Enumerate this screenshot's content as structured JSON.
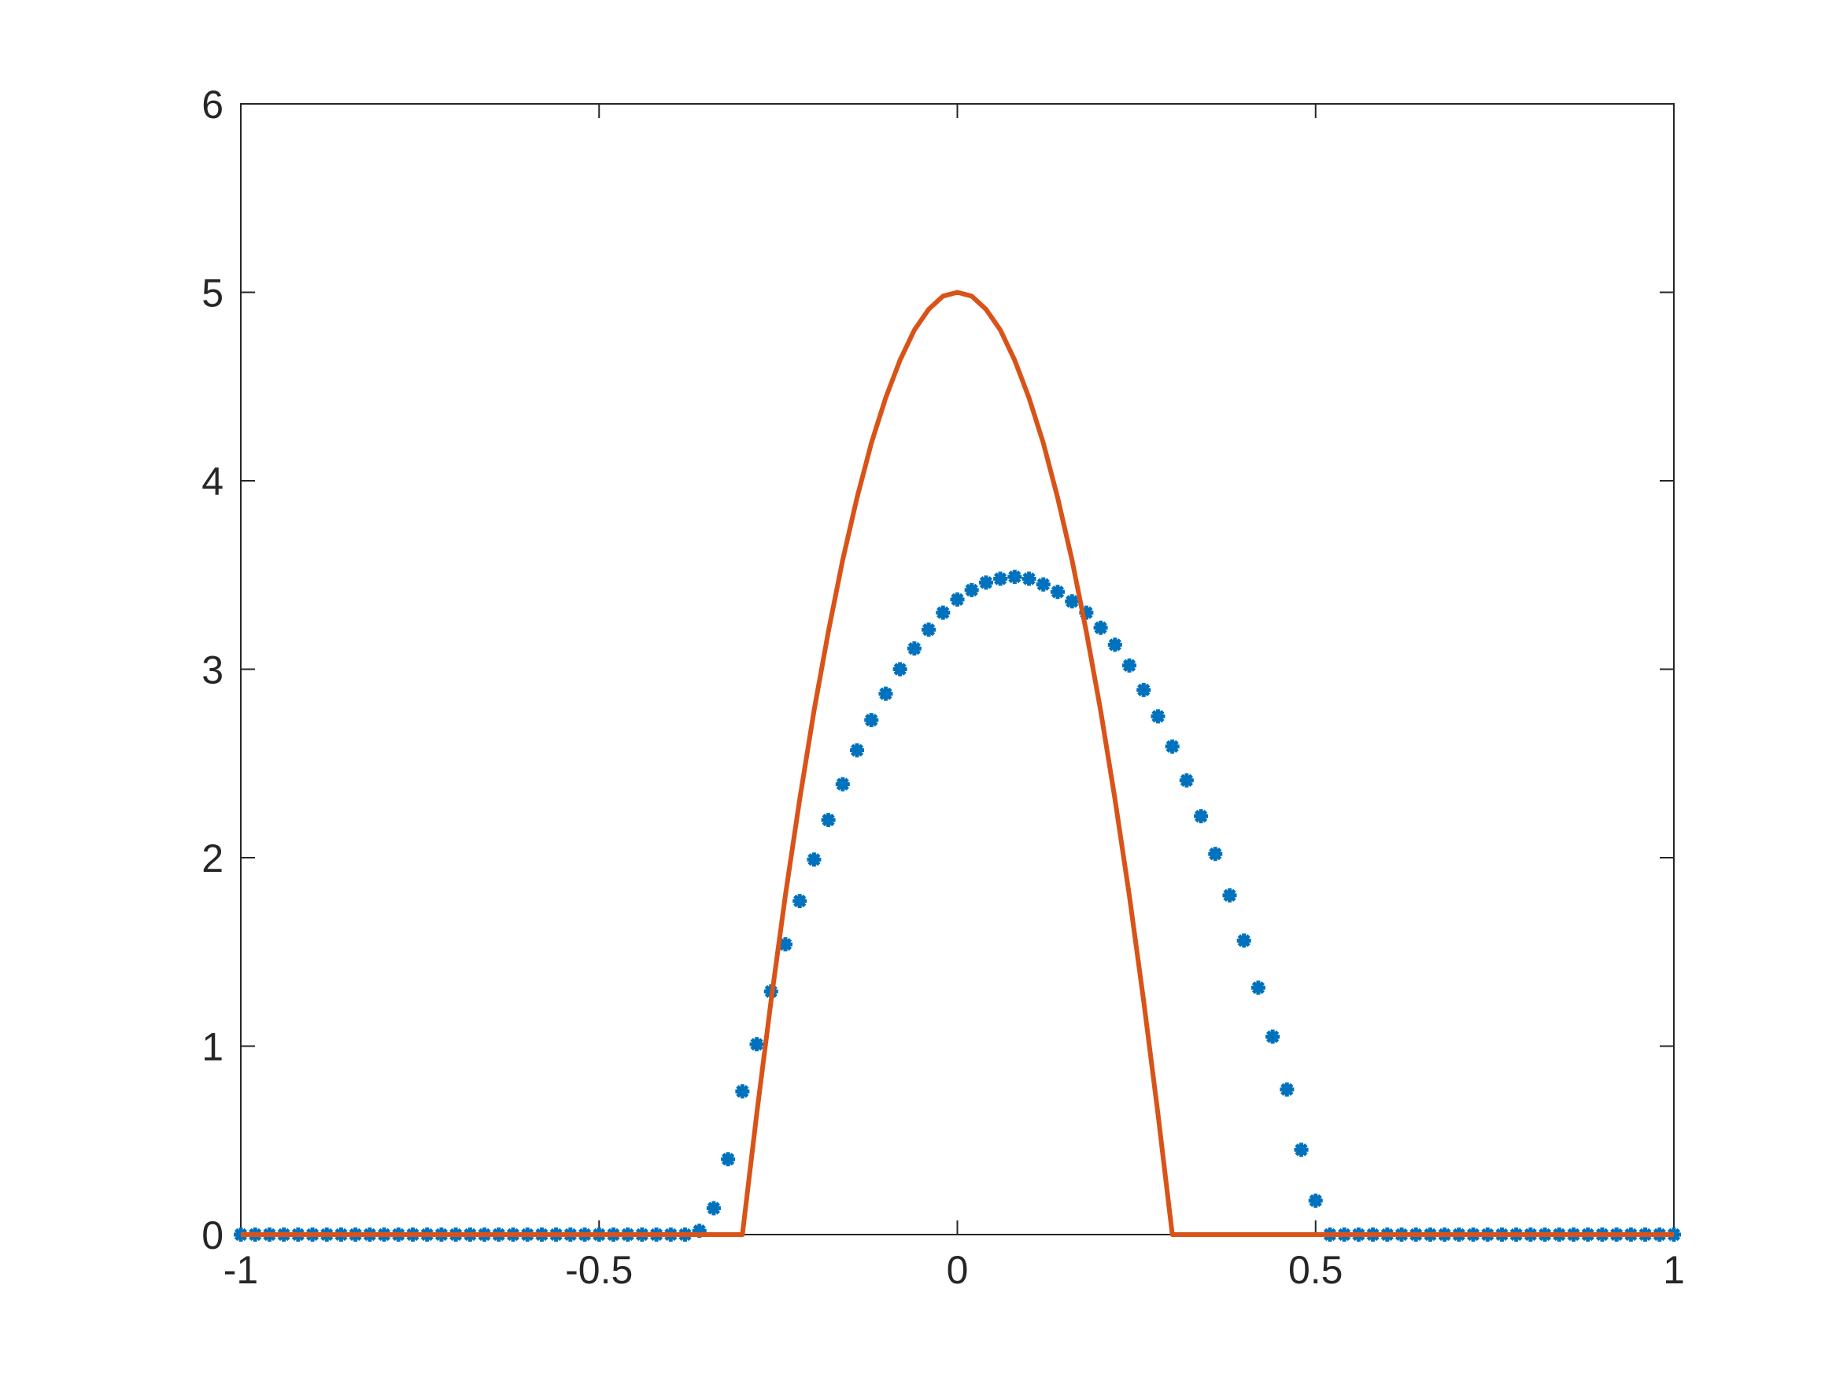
{
  "chart_data": {
    "type": "line",
    "xlim": [
      -1,
      1
    ],
    "xticks": [
      -1,
      -0.5,
      0,
      0.5,
      1
    ],
    "ylim": [
      0,
      6
    ],
    "yticks": [
      0,
      1,
      2,
      3,
      4,
      5,
      6
    ],
    "box": true,
    "series": [
      {
        "style": "markers",
        "marker": "*",
        "color": "#0072bd",
        "x": [
          -1,
          -0.98,
          -0.96,
          -0.94,
          -0.92,
          -0.9,
          -0.88,
          -0.86,
          -0.84,
          -0.82,
          -0.8,
          -0.78,
          -0.76,
          -0.74,
          -0.72,
          -0.7,
          -0.68,
          -0.66,
          -0.64,
          -0.62,
          -0.6,
          -0.58,
          -0.56,
          -0.54,
          -0.52,
          -0.5,
          -0.48,
          -0.46,
          -0.44,
          -0.42,
          -0.4,
          -0.38,
          -0.36,
          -0.34,
          -0.32,
          -0.3,
          -0.28,
          -0.26,
          -0.24,
          -0.22,
          -0.2,
          -0.18,
          -0.16,
          -0.14,
          -0.12,
          -0.1,
          -0.08,
          -0.06,
          -0.04,
          -0.02,
          0,
          0.02,
          0.04,
          0.06,
          0.08,
          0.1,
          0.12,
          0.14,
          0.16,
          0.18,
          0.2,
          0.22,
          0.24,
          0.26,
          0.28,
          0.3,
          0.32,
          0.34,
          0.36,
          0.38,
          0.4,
          0.42,
          0.44,
          0.46,
          0.48,
          0.5,
          0.52,
          0.54,
          0.56,
          0.58,
          0.6,
          0.62,
          0.64,
          0.66,
          0.68,
          0.7,
          0.72,
          0.74,
          0.76,
          0.78,
          0.8,
          0.82,
          0.84,
          0.86,
          0.88,
          0.9,
          0.92,
          0.94,
          0.96,
          0.98,
          1
        ],
        "values": [
          0,
          0,
          0,
          0,
          0,
          0,
          0,
          0,
          0,
          0,
          0,
          0,
          0,
          0,
          0,
          0,
          0,
          0,
          0,
          0,
          0,
          0,
          0,
          0,
          0,
          0,
          0,
          0,
          0,
          0,
          0,
          0,
          0.02,
          0.14,
          0.4,
          0.76,
          1.01,
          1.29,
          1.54,
          1.77,
          1.99,
          2.2,
          2.39,
          2.57,
          2.73,
          2.87,
          3,
          3.11,
          3.21,
          3.3,
          3.37,
          3.42,
          3.46,
          3.48,
          3.49,
          3.48,
          3.45,
          3.41,
          3.36,
          3.3,
          3.22,
          3.13,
          3.02,
          2.89,
          2.75,
          2.59,
          2.41,
          2.22,
          2.02,
          1.8,
          1.56,
          1.31,
          1.05,
          0.77,
          0.45,
          0.18,
          0,
          0,
          0,
          0,
          0,
          0,
          0,
          0,
          0,
          0,
          0,
          0,
          0,
          0,
          0,
          0,
          0,
          0,
          0,
          0,
          0,
          0,
          0,
          0,
          0
        ]
      },
      {
        "style": "line",
        "color": "#d95319",
        "x": [
          -1,
          -0.3,
          -0.28,
          -0.26,
          -0.24,
          -0.22,
          -0.2,
          -0.18,
          -0.16,
          -0.14,
          -0.12,
          -0.1,
          -0.08,
          -0.06,
          -0.04,
          -0.02,
          0,
          0.02,
          0.04,
          0.06,
          0.08,
          0.1,
          0.12,
          0.14,
          0.16,
          0.18,
          0.2,
          0.22,
          0.24,
          0.26,
          0.28,
          0.3,
          1
        ],
        "values": [
          0,
          0,
          0.64,
          1.24,
          1.8,
          2.31,
          2.78,
          3.2,
          3.58,
          3.91,
          4.2,
          4.44,
          4.64,
          4.8,
          4.91,
          4.98,
          5,
          4.98,
          4.91,
          4.8,
          4.64,
          4.44,
          4.2,
          3.91,
          3.58,
          3.2,
          2.78,
          2.31,
          1.8,
          1.24,
          0.64,
          0,
          0
        ]
      }
    ]
  }
}
